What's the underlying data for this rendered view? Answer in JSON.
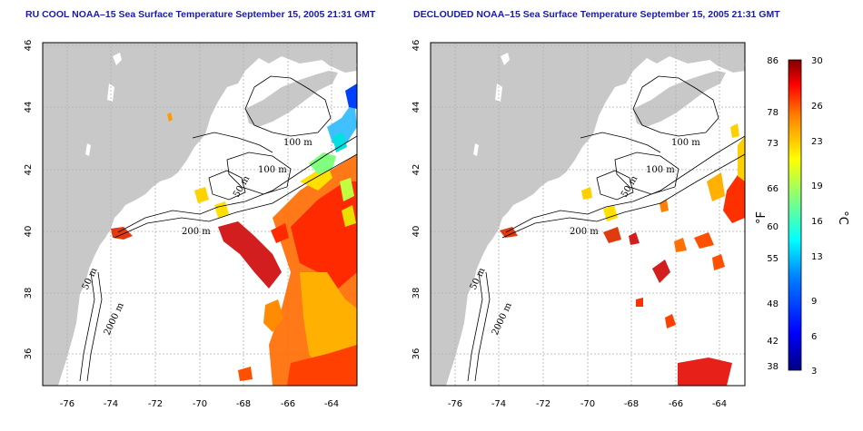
{
  "panels": [
    {
      "title": "RU COOL NOAA–15 Sea Surface Temperature September 15, 2005 21:31 GMT",
      "variant": "raw"
    },
    {
      "title": "DECLOUDED NOAA–15 Sea Surface Temperature September 15, 2005 21:31 GMT",
      "variant": "declouded"
    }
  ],
  "x_ticks": [
    "-76",
    "-74",
    "-72",
    "-70",
    "-68",
    "-66",
    "-64"
  ],
  "y_ticks": [
    "36",
    "38",
    "40",
    "42",
    "44",
    "46"
  ],
  "contour_labels": [
    "100 m",
    "100 m",
    "50 m",
    "200 m",
    "50 m",
    "2000 m"
  ],
  "colorbar": {
    "fahrenheit_ticks": [
      "86",
      "78",
      "73",
      "66",
      "60",
      "55",
      "48",
      "42",
      "38"
    ],
    "celsius_ticks": [
      "30",
      "26",
      "23",
      "19",
      "16",
      "13",
      "9",
      "6",
      "3"
    ],
    "unit_f": "°F",
    "unit_c": "°C",
    "colors": [
      "#00007f",
      "#0000ff",
      "#0080ff",
      "#00ffff",
      "#80ff80",
      "#ffff00",
      "#ff8000",
      "#ff0000",
      "#7f0000"
    ]
  },
  "colors": {
    "land": "#c8c8c8",
    "ocean": "#ffffff",
    "title": "#1a1aa6",
    "grid": "#b0b0b0"
  }
}
